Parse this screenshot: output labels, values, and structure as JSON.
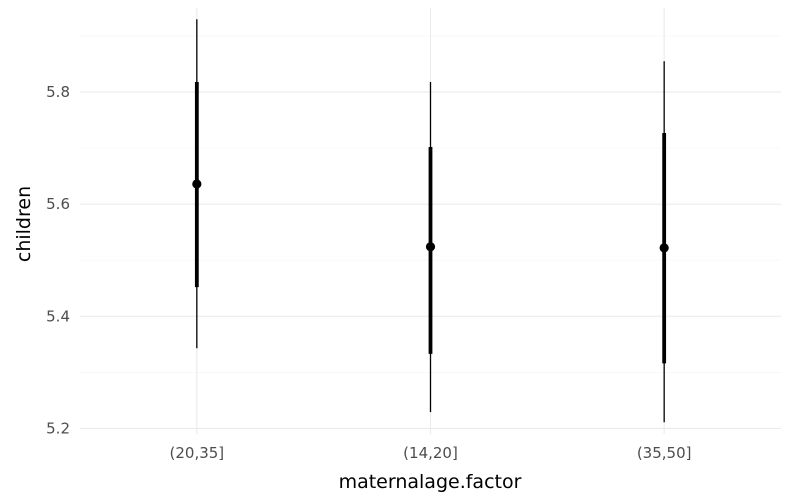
{
  "chart_data": {
    "type": "pointrange",
    "title": "",
    "xlabel": "maternalage.factor",
    "ylabel": "children",
    "categories": [
      "(20,35]",
      "(14,20]",
      "(35,50]"
    ],
    "estimate": [
      5.636,
      5.524,
      5.522
    ],
    "inner_interval": [
      [
        5.452,
        5.818
      ],
      [
        5.333,
        5.702
      ],
      [
        5.316,
        5.727
      ]
    ],
    "outer_interval": [
      [
        5.343,
        5.93
      ],
      [
        5.229,
        5.818
      ],
      [
        5.211,
        5.855
      ]
    ],
    "ylim": [
      5.19,
      5.95
    ],
    "yticks": [
      5.2,
      5.4,
      5.6,
      5.8
    ],
    "ytick_labels": [
      "5.2",
      "5.4",
      "5.6",
      "5.8"
    ],
    "grid": true,
    "legend": "none",
    "colors": {
      "mark": "#000000",
      "grid": "#ebebeb",
      "text": "#4d4d4d"
    }
  }
}
